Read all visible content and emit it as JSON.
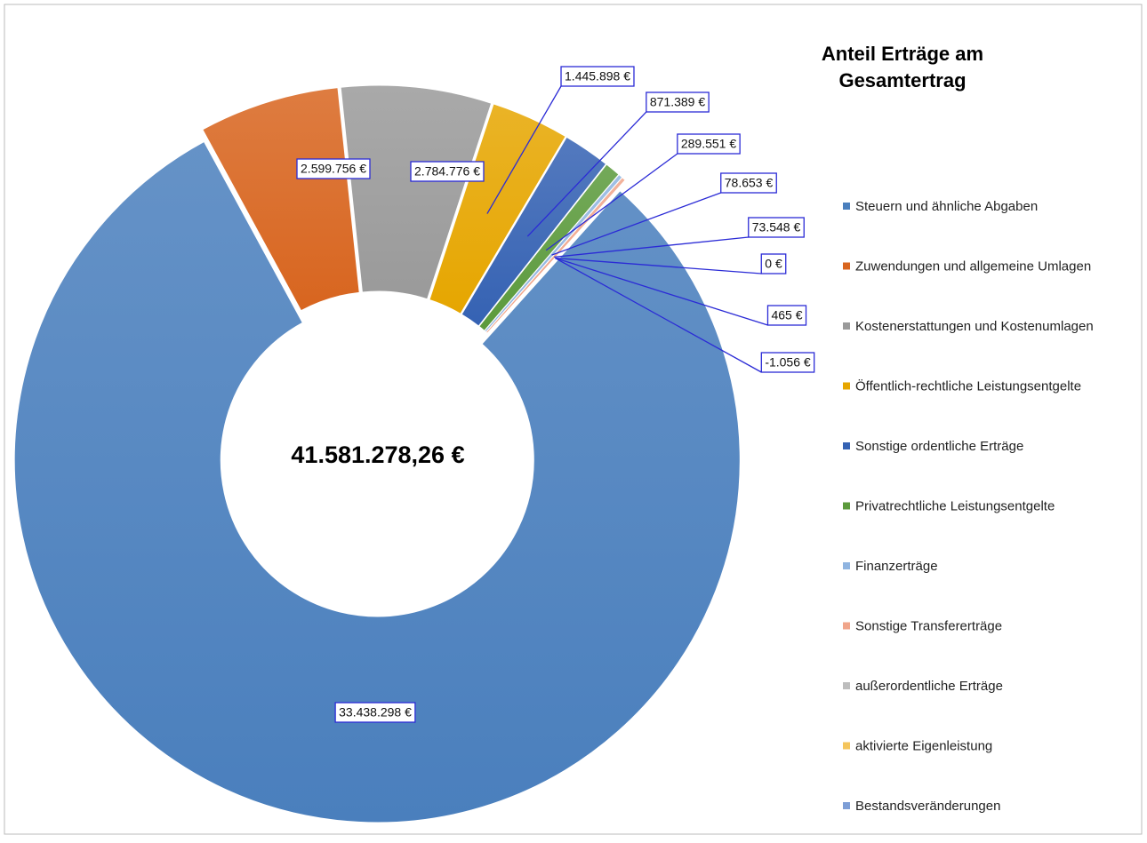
{
  "chart_data": {
    "type": "donut",
    "title": "Anteil Erträge am Gesamtertrag",
    "center_label": "41.581.278,26 €",
    "categories": [
      "Steuern und ähnliche Abgaben",
      "Zuwendungen und allgemeine Umlagen",
      "Kostenerstattungen und Kostenumlagen",
      "Öffentlich-rechtliche Leistungsentgelte",
      "Sonstige ordentliche Erträge",
      "Privatrechtliche Leistungsentgelte",
      "Finanzerträge",
      "Sonstige Transfererträge",
      "außerordentliche Erträge",
      "aktivierte Eigenleistung",
      "Bestandsveränderungen"
    ],
    "values": [
      33438298,
      2599756,
      2784776,
      1445898,
      871389,
      289551,
      78653,
      73548,
      0,
      465,
      -1056
    ],
    "value_labels": [
      "33.438.298 €",
      "2.599.756 €",
      "2.784.776 €",
      "1.445.898 €",
      "871.389 €",
      "289.551 €",
      "78.653 €",
      "73.548 €",
      "0 €",
      "465 €",
      "-1.056 €"
    ],
    "colors": [
      "#4a7fbd",
      "#d8651f",
      "#9a9a9a",
      "#e6a600",
      "#3562b3",
      "#5b9a3c",
      "#8fb4e0",
      "#f0a58a",
      "#bdbdbd",
      "#f4c55c",
      "#7d9ed6"
    ],
    "legend": "right"
  }
}
